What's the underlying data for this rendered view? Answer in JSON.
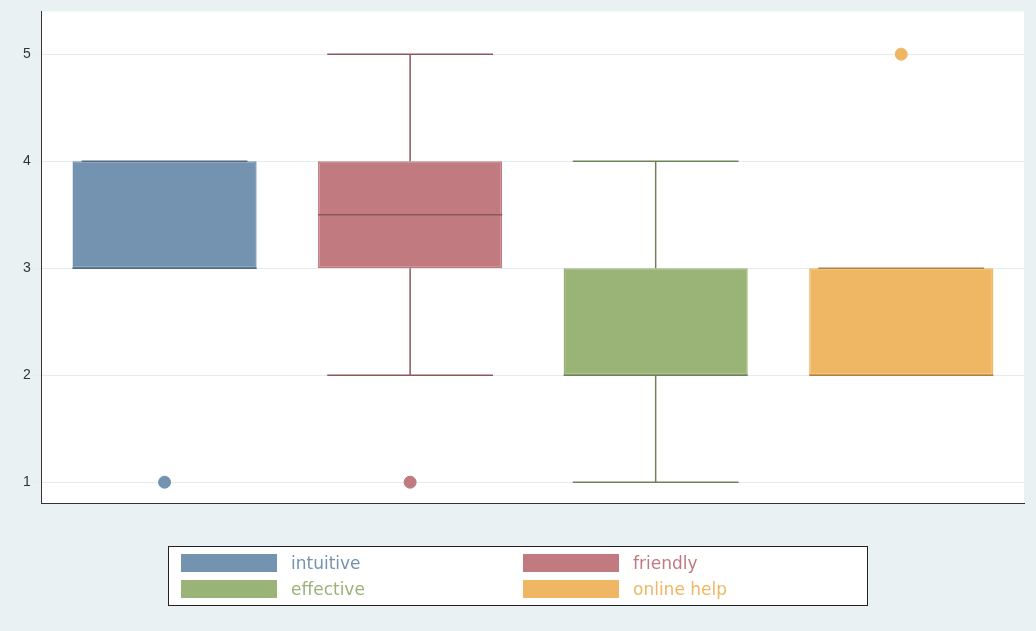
{
  "chart_data": {
    "type": "box",
    "categories": [
      null,
      null,
      null,
      null
    ],
    "series": [
      {
        "name": "intuitive",
        "color": "#7393b0",
        "boxes": [
          {
            "low": 3,
            "q1": 3,
            "median": 3,
            "q3": 4,
            "high": 4,
            "outliers": [
              1
            ]
          },
          null,
          null,
          null
        ]
      },
      {
        "name": "friendly",
        "color": "#c07a80",
        "boxes": [
          null,
          {
            "low": 2,
            "q1": 3,
            "median": 3.5,
            "q3": 4,
            "high": 5,
            "outliers": [
              1
            ]
          },
          null,
          null
        ]
      },
      {
        "name": "effective",
        "color": "#9ab377",
        "boxes": [
          null,
          null,
          {
            "low": 1,
            "q1": 2,
            "median": 2,
            "q3": 3,
            "high": 4
          },
          null
        ]
      },
      {
        "name": "online help",
        "color": "#efb663",
        "boxes": [
          null,
          null,
          null,
          {
            "low": 2,
            "q1": 2,
            "median": 2,
            "q3": 3,
            "high": 3,
            "outliers": [
              5
            ]
          }
        ]
      }
    ],
    "ylim": [
      0.8,
      5.4
    ],
    "yticks": [
      1,
      2,
      3,
      4,
      5
    ],
    "grid": "y",
    "legend": "bottom",
    "marker": "circle"
  }
}
